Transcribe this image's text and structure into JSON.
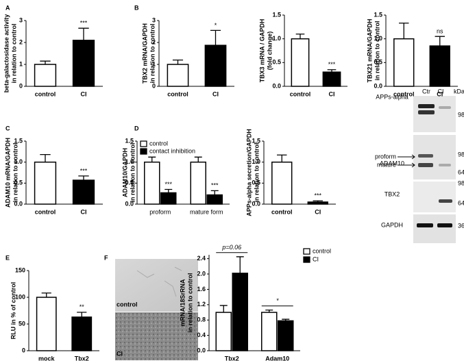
{
  "panels": [
    "A",
    "B",
    "C",
    "D",
    "E",
    "F"
  ],
  "chart_data": [
    {
      "type": "bar",
      "ylabel": [
        "beta-galactosidase activity",
        "in relation to control"
      ],
      "categories": [
        "control",
        "CI"
      ],
      "values": [
        1.0,
        2.1
      ],
      "errors": [
        0.15,
        0.55
      ],
      "colors": [
        "#ffffff",
        "#000000"
      ],
      "annotation": "***",
      "ylim": [
        0,
        3
      ],
      "yticks": [
        0,
        1,
        2,
        3
      ]
    },
    {
      "type": "bar",
      "ylabel": [
        "TBX2 mRNA/GAPDH",
        "in relation to control"
      ],
      "categories": [
        "control",
        "CI"
      ],
      "values": [
        1.0,
        1.87
      ],
      "errors": [
        0.2,
        0.68
      ],
      "colors": [
        "#ffffff",
        "#000000"
      ],
      "annotation": "*",
      "ylim": [
        0,
        3
      ],
      "yticks": [
        0,
        1,
        2,
        3
      ]
    },
    {
      "type": "bar",
      "ylabel": [
        "TBX3 mRNA / GAPDH",
        "(fold change)"
      ],
      "categories": [
        "control",
        "CI"
      ],
      "values": [
        1.0,
        0.3
      ],
      "errors": [
        0.1,
        0.05
      ],
      "colors": [
        "#ffffff",
        "#000000"
      ],
      "annotation": "***",
      "ylim": [
        0,
        1.5
      ],
      "yticks": [
        {
          "value": 0,
          "label": "0.0"
        },
        0.5,
        {
          "value": 1,
          "label": "1.0"
        },
        1.5
      ]
    },
    {
      "type": "bar",
      "ylabel": [
        "TBX21 mRNA/GAPDH",
        "in relation to control"
      ],
      "categories": [
        "control",
        "CI"
      ],
      "values": [
        1.0,
        0.85
      ],
      "errors": [
        0.33,
        0.2
      ],
      "colors": [
        "#ffffff",
        "#000000"
      ],
      "annotation": "ns",
      "ylim": [
        0,
        1.5
      ],
      "yticks": [
        {
          "value": 0,
          "label": "0.0"
        },
        0.5,
        {
          "value": 1,
          "label": "1.0"
        },
        1.5
      ]
    },
    {
      "type": "bar",
      "ylabel": [
        "ADAM10 mRNA/GAPDH",
        "in relation to control"
      ],
      "categories": [
        "control",
        "CI"
      ],
      "values": [
        1.0,
        0.57
      ],
      "errors": [
        0.18,
        0.1
      ],
      "colors": [
        "#ffffff",
        "#000000"
      ],
      "annotation": "***",
      "ylim": [
        0,
        1.5
      ],
      "yticks": [
        {
          "value": 0,
          "label": "0.0"
        },
        0.5,
        {
          "value": 1,
          "label": "1.0"
        },
        1.5
      ]
    },
    {
      "type": "grouped-bar",
      "ylabel": [
        "ADAM10/GAPDH",
        "in relation to control"
      ],
      "categories": [
        "proform",
        "mature form"
      ],
      "series": [
        {
          "name": "control",
          "color": "#ffffff",
          "values": [
            1.0,
            1.0
          ],
          "errors": [
            0.12,
            0.12
          ]
        },
        {
          "name": "contact inhibition",
          "color": "#000000",
          "values": [
            0.27,
            0.22
          ],
          "errors": [
            0.08,
            0.1
          ]
        }
      ],
      "annotations": [
        "***",
        "***"
      ],
      "legend": "top-left",
      "ylim": [
        0,
        1.5
      ],
      "yticks": [
        {
          "value": 0,
          "label": "0.0"
        },
        0.5,
        {
          "value": 1,
          "label": "1.0"
        },
        1.5
      ]
    },
    {
      "type": "bar",
      "ylabel": [
        "APPs-alpha secretion/GAPDH",
        "in relation to control"
      ],
      "categories": [
        "control",
        "CI"
      ],
      "values": [
        1.0,
        0.05
      ],
      "errors": [
        0.17,
        0.03
      ],
      "colors": [
        "#ffffff",
        "#000000"
      ],
      "annotation": "***",
      "ylim": [
        0,
        1.5
      ],
      "yticks": [
        {
          "value": 0,
          "label": "0.0"
        },
        0.5,
        {
          "value": 1,
          "label": "1.0"
        },
        1.5
      ]
    },
    {
      "type": "bar",
      "ylabel": [
        "RLU in % of control"
      ],
      "categories": [
        "mock",
        "Tbx2"
      ],
      "values": [
        100,
        63
      ],
      "errors": [
        8,
        9
      ],
      "colors": [
        "#ffffff",
        "#000000"
      ],
      "annotation": "**",
      "ylim": [
        0,
        150
      ],
      "yticks": [
        0,
        50,
        100,
        150
      ]
    },
    {
      "type": "grouped-bar",
      "ylabel": [
        "mRNA/18SrRNA",
        "in relation to control"
      ],
      "categories": [
        "Tbx2",
        "Adam10"
      ],
      "series": [
        {
          "name": "control",
          "color": "#ffffff",
          "values": [
            1.0,
            1.0
          ],
          "errors": [
            0.18,
            0.06
          ]
        },
        {
          "name": "CI",
          "color": "#000000",
          "values": [
            2.02,
            0.78
          ],
          "errors": [
            0.43,
            0.04
          ]
        }
      ],
      "annotations": [
        "p=0.06",
        "*"
      ],
      "brackets": true,
      "legend": "outside-top-right",
      "ylim": [
        0,
        2.5
      ],
      "yticks": [
        {
          "value": 0,
          "label": "0.0"
        },
        0.4,
        0.8,
        1.2,
        1.6,
        {
          "value": 2,
          "label": "2.0"
        },
        2.4
      ]
    }
  ],
  "blot": {
    "lanes": [
      "Ctr",
      "CI"
    ],
    "unit": "kDa",
    "rows": [
      {
        "label": "APPs-alpha",
        "kda": [
          98
        ]
      },
      {
        "label": "ADAM10",
        "forms": [
          "proform",
          "mature"
        ],
        "kda": [
          98,
          64
        ]
      },
      {
        "label": "TBX2",
        "kda": [
          98,
          64
        ]
      },
      {
        "label": "GAPDH",
        "kda": [
          36
        ]
      }
    ]
  },
  "images": {
    "labels": [
      "control",
      "CI"
    ]
  }
}
